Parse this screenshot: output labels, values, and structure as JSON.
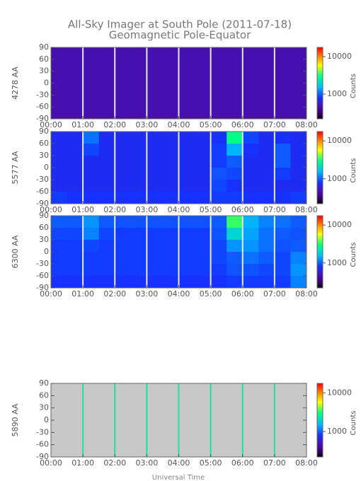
{
  "chart_data": [
    {
      "type": "keogram",
      "title": "All-Sky Imager at South Pole (2011-07-18)",
      "subtitle": "Geomagnetic Pole-Equator",
      "ylabel": "4278 AA",
      "zlabel": "Counts",
      "xlim": [
        0,
        8
      ],
      "xticks": [
        {
          "value": 0,
          "label": "00:00"
        },
        {
          "value": 1,
          "label": "01:00"
        },
        {
          "value": 2,
          "label": "02:00"
        },
        {
          "value": 3,
          "label": "03:00"
        },
        {
          "value": 4,
          "label": "04:00"
        },
        {
          "value": 5,
          "label": "05:00"
        },
        {
          "value": 6,
          "label": "06:00"
        },
        {
          "value": 7,
          "label": "07:00"
        },
        {
          "value": 8,
          "label": "08:00"
        }
      ],
      "ylim": [
        -90,
        90
      ],
      "yticks": [
        90,
        60,
        30,
        0,
        -30,
        -60,
        -90
      ],
      "zlim": [
        220,
        17600
      ],
      "zticks": [
        1000,
        10000
      ],
      "zlog": true,
      "separator_color": "#e8e8e8",
      "z": [
        [
          480,
          480,
          480,
          480,
          480,
          480,
          480,
          480,
          480,
          480,
          480,
          480,
          480,
          480,
          480,
          480
        ],
        [
          480,
          480,
          480,
          480,
          480,
          480,
          480,
          480,
          480,
          480,
          480,
          480,
          480,
          480,
          480,
          480
        ],
        [
          480,
          480,
          480,
          480,
          480,
          480,
          480,
          480,
          480,
          480,
          480,
          480,
          480,
          480,
          480,
          480
        ],
        [
          480,
          480,
          480,
          480,
          480,
          480,
          480,
          480,
          480,
          480,
          480,
          480,
          480,
          480,
          480,
          480
        ],
        [
          480,
          480,
          480,
          480,
          480,
          480,
          480,
          480,
          480,
          480,
          480,
          480,
          480,
          480,
          480,
          480
        ],
        [
          480,
          480,
          480,
          480,
          480,
          480,
          480,
          480,
          480,
          480,
          480,
          480,
          480,
          480,
          480,
          480
        ]
      ]
    },
    {
      "type": "keogram",
      "ylabel": "5577 AA",
      "zlabel": "Counts",
      "xlim": [
        0,
        8
      ],
      "xticks": [
        {
          "value": 0,
          "label": "00:00"
        },
        {
          "value": 1,
          "label": "01:00"
        },
        {
          "value": 2,
          "label": "02:00"
        },
        {
          "value": 3,
          "label": "03:00"
        },
        {
          "value": 4,
          "label": "04:00"
        },
        {
          "value": 5,
          "label": "05:00"
        },
        {
          "value": 6,
          "label": "06:00"
        },
        {
          "value": 7,
          "label": "07:00"
        },
        {
          "value": 8,
          "label": "08:00"
        }
      ],
      "ylim": [
        -90,
        90
      ],
      "yticks": [
        90,
        60,
        30,
        0,
        -30,
        -60,
        -90
      ],
      "zlim": [
        220,
        17600
      ],
      "zticks": [
        1000,
        10000
      ],
      "zlog": true,
      "separator_color": "#e8e8e8",
      "z": [
        [
          750,
          750,
          1100,
          750,
          750,
          750,
          750,
          750,
          750,
          750,
          800,
          3000,
          900,
          750,
          800,
          750
        ],
        [
          750,
          750,
          900,
          750,
          750,
          750,
          750,
          750,
          750,
          750,
          850,
          1500,
          800,
          750,
          1000,
          750
        ],
        [
          750,
          750,
          750,
          750,
          750,
          750,
          750,
          750,
          750,
          750,
          850,
          1000,
          750,
          750,
          1000,
          750
        ],
        [
          750,
          750,
          750,
          750,
          750,
          750,
          750,
          750,
          750,
          750,
          950,
          900,
          750,
          750,
          850,
          750
        ],
        [
          750,
          750,
          750,
          750,
          750,
          750,
          750,
          750,
          750,
          750,
          900,
          800,
          750,
          750,
          750,
          750
        ],
        [
          850,
          800,
          800,
          800,
          800,
          800,
          800,
          800,
          800,
          800,
          850,
          850,
          800,
          800,
          800,
          850
        ]
      ]
    },
    {
      "type": "keogram",
      "ylabel": "6300 AA",
      "zlabel": "Counts",
      "xlim": [
        0,
        8
      ],
      "xticks": [
        {
          "value": 0,
          "label": "00:00"
        },
        {
          "value": 1,
          "label": "01:00"
        },
        {
          "value": 2,
          "label": "02:00"
        },
        {
          "value": 3,
          "label": "03:00"
        },
        {
          "value": 4,
          "label": "04:00"
        },
        {
          "value": 5,
          "label": "05:00"
        },
        {
          "value": 6,
          "label": "06:00"
        },
        {
          "value": 7,
          "label": "07:00"
        },
        {
          "value": 8,
          "label": "08:00"
        }
      ],
      "ylim": [
        -90,
        90
      ],
      "yticks": [
        90,
        60,
        30,
        0,
        -30,
        -60,
        -90
      ],
      "zlim": [
        220,
        17600
      ],
      "zticks": [
        1000,
        10000
      ],
      "zlog": true,
      "separator_color": "#e8e8e8",
      "z": [
        [
          1000,
          1000,
          1300,
          1000,
          950,
          950,
          950,
          950,
          950,
          950,
          1000,
          3500,
          1500,
          1200,
          1100,
          1000
        ],
        [
          900,
          900,
          1200,
          900,
          850,
          850,
          850,
          850,
          850,
          850,
          950,
          2000,
          1400,
          1100,
          1000,
          950
        ],
        [
          850,
          850,
          900,
          850,
          850,
          850,
          850,
          850,
          850,
          850,
          900,
          1300,
          1300,
          1100,
          950,
          1000
        ],
        [
          850,
          850,
          850,
          850,
          850,
          850,
          850,
          850,
          850,
          850,
          900,
          1000,
          1100,
          1000,
          900,
          1200
        ],
        [
          850,
          850,
          850,
          850,
          850,
          850,
          850,
          850,
          850,
          850,
          850,
          950,
          950,
          900,
          900,
          1300
        ],
        [
          800,
          800,
          800,
          800,
          800,
          800,
          800,
          800,
          800,
          800,
          800,
          850,
          850,
          850,
          850,
          1200
        ]
      ]
    },
    {
      "type": "keogram",
      "ylabel": "5890 AA",
      "zlabel": "Counts",
      "xlabel": "Universal Time",
      "xlim": [
        0,
        8
      ],
      "xticks": [
        {
          "value": 0,
          "label": "00:00"
        },
        {
          "value": 1,
          "label": "01:00"
        },
        {
          "value": 2,
          "label": "02:00"
        },
        {
          "value": 3,
          "label": "03:00"
        },
        {
          "value": 4,
          "label": "04:00"
        },
        {
          "value": 5,
          "label": "05:00"
        },
        {
          "value": 6,
          "label": "06:00"
        },
        {
          "value": 7,
          "label": "07:00"
        },
        {
          "value": 8,
          "label": "08:00"
        }
      ],
      "ylim": [
        -90,
        90
      ],
      "yticks": [
        90,
        60,
        30,
        0,
        -30,
        -60,
        -90
      ],
      "zlim": [
        220,
        17600
      ],
      "zticks": [
        1000,
        10000
      ],
      "zlog": true,
      "separator_color": "#20e0a0",
      "no_data_color": "#c8c8c8"
    }
  ]
}
